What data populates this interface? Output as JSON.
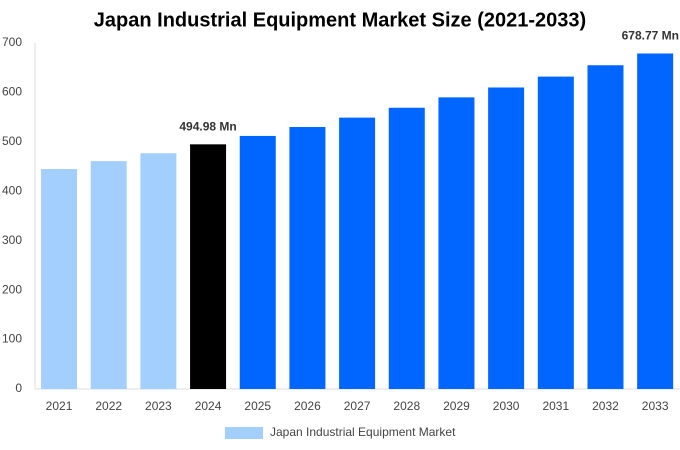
{
  "chart_data": {
    "type": "bar",
    "title": "Japan Industrial Equipment Market Size (2021-2033)",
    "categories": [
      "2021",
      "2022",
      "2023",
      "2024",
      "2025",
      "2026",
      "2027",
      "2028",
      "2029",
      "2030",
      "2031",
      "2032",
      "2033"
    ],
    "series": [
      {
        "name": "Japan Industrial Equipment Market",
        "color": "#a3cfff",
        "colors": [
          "#a3cfff",
          "#a3cfff",
          "#a3cfff",
          "#000000",
          "#0066ff",
          "#0066ff",
          "#0066ff",
          "#0066ff",
          "#0066ff",
          "#0066ff",
          "#0066ff",
          "#0066ff",
          "#0066ff"
        ],
        "values": [
          445,
          461,
          477,
          494.98,
          512,
          530,
          549,
          569,
          590,
          610,
          632,
          655,
          678.77
        ],
        "value_labels": [
          null,
          null,
          null,
          "494.98 Mn",
          null,
          null,
          null,
          null,
          null,
          null,
          null,
          null,
          "678.77 Mn"
        ]
      }
    ],
    "ylim": [
      0,
      700
    ],
    "yticks": [
      0,
      100,
      200,
      300,
      400,
      500,
      600,
      700
    ],
    "grid": false
  }
}
